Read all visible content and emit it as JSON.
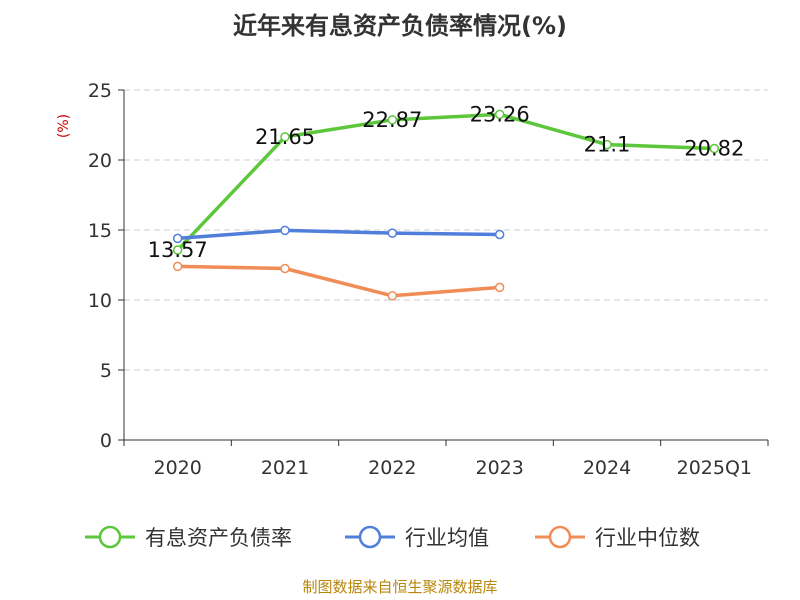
{
  "chart_data": {
    "type": "line",
    "title": "近年来有息资产负债率情况(%)",
    "ylabel": "(%)",
    "xlabel": "",
    "categories": [
      "2020",
      "2021",
      "2022",
      "2023",
      "2024",
      "2025Q1"
    ],
    "ylim": [
      0,
      25
    ],
    "yticks": [
      0,
      5,
      10,
      15,
      20,
      25
    ],
    "grid": true,
    "legend_position": "bottom",
    "series": [
      {
        "name": "有息资产负债率",
        "values": [
          13.57,
          21.65,
          22.87,
          23.26,
          21.1,
          20.82
        ],
        "color": "#5cc73a",
        "labels": [
          "13.57",
          "21.65",
          "22.87",
          "23.26",
          "21.1",
          "20.82"
        ]
      },
      {
        "name": "行业均值",
        "values": [
          14.4,
          14.97,
          14.78,
          14.68,
          null,
          null
        ],
        "color": "#4f7fdb"
      },
      {
        "name": "行业中位数",
        "values": [
          12.4,
          12.25,
          10.3,
          10.9,
          null,
          null
        ],
        "color": "#f08c56"
      }
    ]
  },
  "source": "制图数据来自恒生聚源数据库",
  "colors": {
    "ylabel": "#cc0000",
    "source": "#b8860b",
    "grid": "#cccccc",
    "axis": "#333333"
  }
}
